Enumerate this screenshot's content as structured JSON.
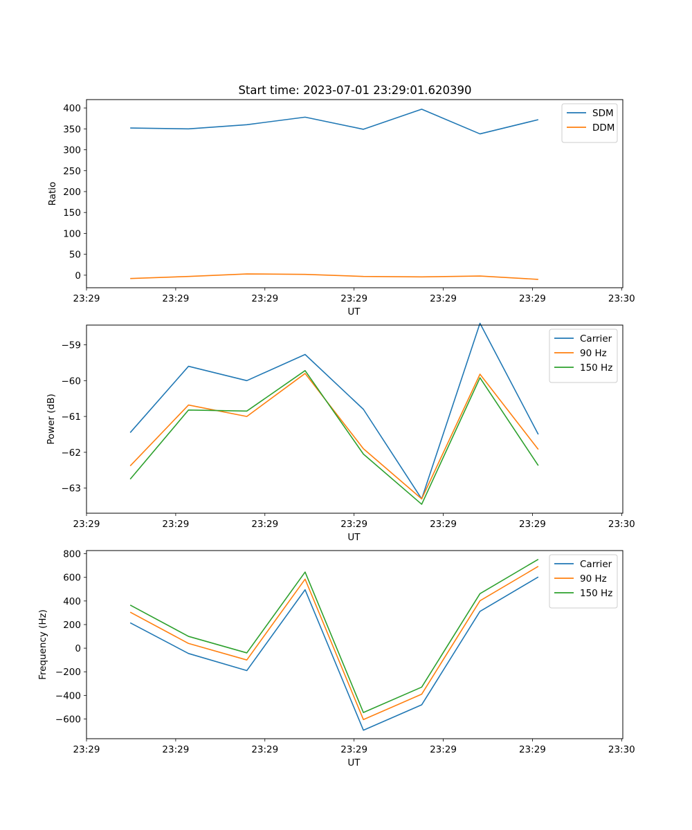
{
  "figure_title": "Start time: 2023-07-01 23:29:01.620390",
  "chart_data": [
    {
      "type": "line",
      "title": "Start time: 2023-07-01 23:29:01.620390",
      "xlabel": "UT",
      "ylabel": "Ratio",
      "xlim": [
        -0.75,
        8.45
      ],
      "ylim": [
        -30,
        420
      ],
      "x": [
        0,
        1,
        2,
        3,
        4,
        5,
        6,
        7
      ],
      "x_tick_positions": [
        -0.75,
        0.78,
        2.31,
        3.84,
        5.37,
        6.9,
        8.43
      ],
      "x_tick_labels": [
        "23:29",
        "23:29",
        "23:29",
        "23:29",
        "23:29",
        "23:29",
        "23:30"
      ],
      "y_ticks": [
        0,
        50,
        100,
        150,
        200,
        250,
        300,
        350,
        400
      ],
      "y_tick_labels": [
        "0",
        "50",
        "100",
        "150",
        "200",
        "250",
        "300",
        "350",
        "400"
      ],
      "legend_position": "top-right",
      "series": [
        {
          "name": "SDM",
          "color": "#1f77b4",
          "values": [
            352,
            350,
            360,
            378,
            349,
            397,
            338,
            372
          ]
        },
        {
          "name": "DDM",
          "color": "#ff7f0e",
          "values": [
            -8,
            -3,
            3,
            2,
            -3,
            -4,
            -2,
            -10
          ]
        }
      ]
    },
    {
      "type": "line",
      "title": "",
      "xlabel": "UT",
      "ylabel": "Power (dB)",
      "xlim": [
        -0.75,
        8.45
      ],
      "ylim": [
        -63.7,
        -58.45
      ],
      "x": [
        0,
        1,
        2,
        3,
        4,
        5,
        6,
        7
      ],
      "x_tick_positions": [
        -0.75,
        0.78,
        2.31,
        3.84,
        5.37,
        6.9,
        8.43
      ],
      "x_tick_labels": [
        "23:29",
        "23:29",
        "23:29",
        "23:29",
        "23:29",
        "23:29",
        "23:30"
      ],
      "y_ticks": [
        -63,
        -62,
        -61,
        -60,
        -59
      ],
      "y_tick_labels": [
        "−63",
        "−62",
        "−61",
        "−60",
        "−59"
      ],
      "legend_position": "top-right",
      "series": [
        {
          "name": "Carrier",
          "color": "#1f77b4",
          "values": [
            -61.45,
            -59.6,
            -60.0,
            -59.27,
            -60.8,
            -63.3,
            -58.4,
            -61.5
          ]
        },
        {
          "name": "90 Hz",
          "color": "#ff7f0e",
          "values": [
            -62.38,
            -60.68,
            -61.0,
            -59.8,
            -61.9,
            -63.3,
            -59.82,
            -61.92
          ]
        },
        {
          "name": "150 Hz",
          "color": "#2ca02c",
          "values": [
            -62.75,
            -60.82,
            -60.85,
            -59.72,
            -62.05,
            -63.45,
            -59.92,
            -62.37
          ]
        }
      ]
    },
    {
      "type": "line",
      "title": "",
      "xlabel": "UT",
      "ylabel": "Frequency (Hz)",
      "xlim": [
        -0.75,
        8.45
      ],
      "ylim": [
        -767,
        827
      ],
      "x": [
        0,
        1,
        2,
        3,
        4,
        5,
        6,
        7
      ],
      "x_tick_positions": [
        -0.75,
        0.78,
        2.31,
        3.84,
        5.37,
        6.9,
        8.43
      ],
      "x_tick_labels": [
        "23:29",
        "23:29",
        "23:29",
        "23:29",
        "23:29",
        "23:29",
        "23:30"
      ],
      "y_ticks": [
        -600,
        -400,
        -200,
        0,
        200,
        400,
        600,
        800
      ],
      "y_tick_labels": [
        "−600",
        "−400",
        "−200",
        "0",
        "200",
        "400",
        "600",
        "800"
      ],
      "legend_position": "top-right",
      "series": [
        {
          "name": "Carrier",
          "color": "#1f77b4",
          "values": [
            215,
            -45,
            -190,
            495,
            -695,
            -480,
            312,
            603
          ]
        },
        {
          "name": "90 Hz",
          "color": "#ff7f0e",
          "values": [
            305,
            40,
            -100,
            585,
            -605,
            -390,
            402,
            693
          ]
        },
        {
          "name": "150 Hz",
          "color": "#2ca02c",
          "values": [
            365,
            100,
            -40,
            645,
            -545,
            -330,
            462,
            753
          ]
        }
      ]
    }
  ]
}
